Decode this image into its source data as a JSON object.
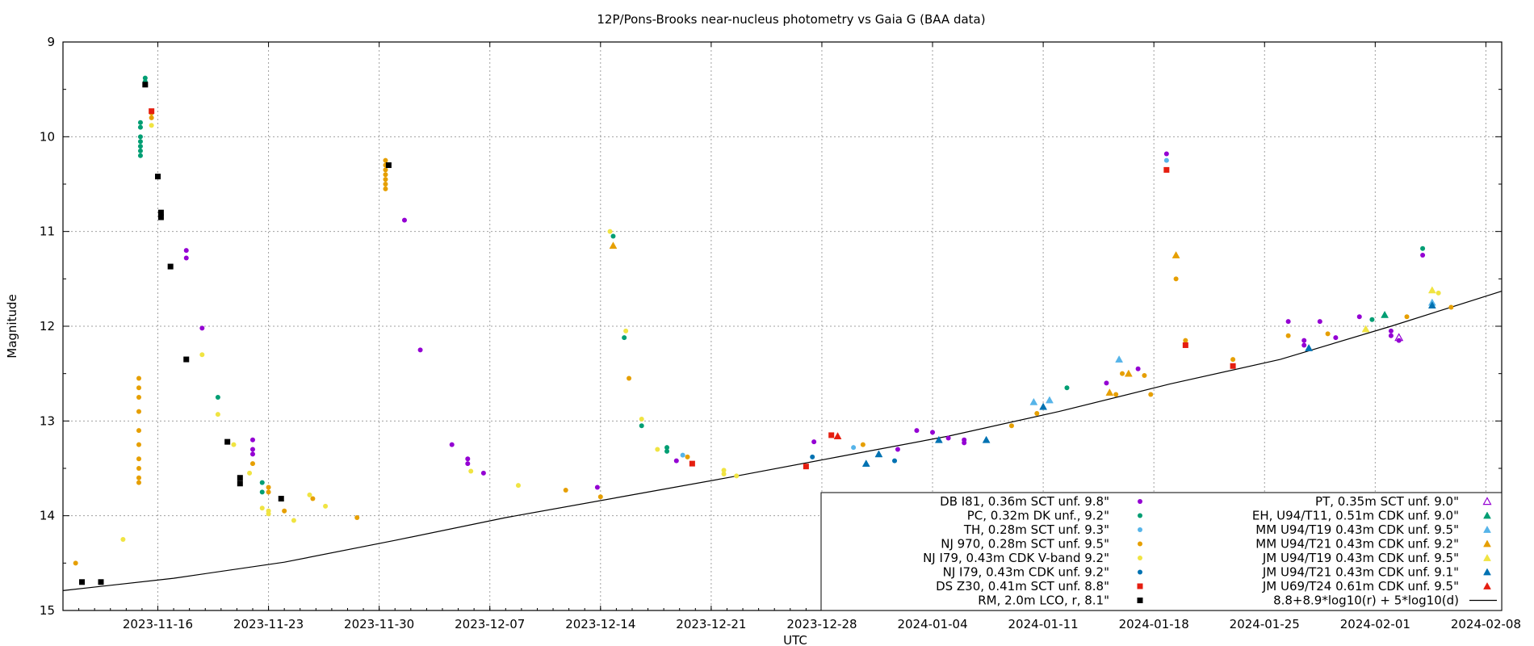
{
  "chart_data": {
    "type": "scatter",
    "title": "12P/Pons-Brooks near-nucleus photometry vs Gaia G (BAA data)",
    "xlabel": "UTC",
    "ylabel": "Magnitude",
    "xlim": [
      "2023-11-10",
      "2024-02-09"
    ],
    "ylim": [
      9,
      15
    ],
    "y_inverted": true,
    "grid": true,
    "legend_position": "bottom-right",
    "x_ticks": [
      "2023-11-16",
      "2023-11-23",
      "2023-11-30",
      "2023-12-07",
      "2023-12-14",
      "2023-12-21",
      "2023-12-28",
      "2024-01-04",
      "2024-01-11",
      "2024-01-18",
      "2024-01-25",
      "2024-02-01",
      "2024-02-08"
    ],
    "y_ticks": [
      9,
      10,
      11,
      12,
      13,
      14,
      15
    ],
    "series": [
      {
        "name": "DB I81, 0.36m SCT unf. 9.8\"",
        "marker": "dot",
        "color": "#9400d3",
        "points": [
          [
            "2023-11-17.8",
            11.2
          ],
          [
            "2023-11-17.8",
            11.28
          ],
          [
            "2023-11-18.8",
            12.02
          ],
          [
            "2023-11-22.0",
            13.2
          ],
          [
            "2023-11-22.0",
            13.3
          ],
          [
            "2023-11-22.0",
            13.35
          ],
          [
            "2023-12-01.6",
            10.88
          ],
          [
            "2023-12-02.6",
            12.25
          ],
          [
            "2023-12-04.6",
            13.25
          ],
          [
            "2023-12-05.6",
            13.4
          ],
          [
            "2023-12-05.6",
            13.45
          ],
          [
            "2023-12-06.6",
            13.55
          ],
          [
            "2023-12-13.8",
            13.7
          ],
          [
            "2023-12-18.8",
            13.42
          ],
          [
            "2023-12-27.5",
            13.22
          ],
          [
            "2024-01-01.8",
            13.3
          ],
          [
            "2024-01-03.0",
            13.1
          ],
          [
            "2024-01-04.0",
            13.12
          ],
          [
            "2024-01-05.0",
            13.18
          ],
          [
            "2024-01-06.0",
            13.2
          ],
          [
            "2024-01-06.0",
            13.23
          ],
          [
            "2024-01-15.0",
            12.6
          ],
          [
            "2024-01-17.0",
            12.45
          ],
          [
            "2024-01-18.8",
            10.18
          ],
          [
            "2024-01-26.5",
            11.95
          ],
          [
            "2024-01-27.5",
            12.15
          ],
          [
            "2024-01-27.5",
            12.2
          ],
          [
            "2024-01-28.5",
            11.95
          ],
          [
            "2024-01-29.5",
            12.12
          ],
          [
            "2024-01-31.0",
            11.9
          ],
          [
            "2024-02-02.0",
            12.05
          ],
          [
            "2024-02-02.0",
            12.1
          ],
          [
            "2024-02-02.5",
            12.15
          ],
          [
            "2024-02-04.0",
            11.25
          ]
        ]
      },
      {
        "name": "PC, 0.32m DK unf., 9.2\"",
        "marker": "dot",
        "color": "#009e73",
        "points": [
          [
            "2023-11-14.9",
            10.0
          ],
          [
            "2023-11-14.9",
            10.05
          ],
          [
            "2023-11-14.9",
            10.1
          ],
          [
            "2023-11-14.9",
            10.15
          ],
          [
            "2023-11-14.9",
            10.2
          ],
          [
            "2023-11-14.9",
            9.85
          ],
          [
            "2023-11-14.9",
            9.9
          ],
          [
            "2023-11-15.2",
            9.38
          ],
          [
            "2023-11-15.2",
            9.42
          ],
          [
            "2023-11-19.8",
            12.75
          ],
          [
            "2023-11-22.6",
            13.75
          ],
          [
            "2023-11-22.6",
            13.65
          ],
          [
            "2023-12-14.8",
            11.05
          ],
          [
            "2023-12-15.5",
            12.12
          ],
          [
            "2023-12-16.6",
            13.05
          ],
          [
            "2023-12-18.2",
            13.28
          ],
          [
            "2023-12-18.2",
            13.32
          ],
          [
            "2024-01-12.5",
            12.65
          ],
          [
            "2024-01-31.8",
            11.93
          ],
          [
            "2024-02-04.0",
            11.18
          ]
        ]
      },
      {
        "name": "TH, 0.28m SCT unf. 9.3\"",
        "marker": "dot",
        "color": "#56b4e9",
        "points": [
          [
            "2023-12-19.2",
            13.36
          ],
          [
            "2023-12-30.0",
            13.28
          ],
          [
            "2024-01-18.8",
            10.25
          ]
        ]
      },
      {
        "name": "NJ 970, 0.28m SCT unf. 9.5\"",
        "marker": "dot",
        "color": "#e69f00",
        "points": [
          [
            "2023-11-10.8",
            14.5
          ],
          [
            "2023-11-14.8",
            12.55
          ],
          [
            "2023-11-14.8",
            12.65
          ],
          [
            "2023-11-14.8",
            12.75
          ],
          [
            "2023-11-14.8",
            12.9
          ],
          [
            "2023-11-14.8",
            13.1
          ],
          [
            "2023-11-14.8",
            13.25
          ],
          [
            "2023-11-14.8",
            13.4
          ],
          [
            "2023-11-14.8",
            13.5
          ],
          [
            "2023-11-14.8",
            13.6
          ],
          [
            "2023-11-14.8",
            13.65
          ],
          [
            "2023-11-15.6",
            9.75
          ],
          [
            "2023-11-15.6",
            9.8
          ],
          [
            "2023-11-22.0",
            13.45
          ],
          [
            "2023-11-23.0",
            13.7
          ],
          [
            "2023-11-23.0",
            13.75
          ],
          [
            "2023-11-24.0",
            13.95
          ],
          [
            "2023-11-25.8",
            13.82
          ],
          [
            "2023-11-28.6",
            14.02
          ],
          [
            "2023-11-30.4",
            10.25
          ],
          [
            "2023-11-30.4",
            10.3
          ],
          [
            "2023-11-30.4",
            10.35
          ],
          [
            "2023-11-30.4",
            10.4
          ],
          [
            "2023-11-30.4",
            10.45
          ],
          [
            "2023-11-30.4",
            10.5
          ],
          [
            "2023-11-30.4",
            10.55
          ],
          [
            "2023-12-11.8",
            13.73
          ],
          [
            "2023-12-14.0",
            13.8
          ],
          [
            "2023-12-15.8",
            12.55
          ],
          [
            "2023-12-19.5",
            13.38
          ],
          [
            "2023-12-30.6",
            13.25
          ],
          [
            "2024-01-09.0",
            13.05
          ],
          [
            "2024-01-10.6",
            12.92
          ],
          [
            "2024-01-15.6",
            12.72
          ],
          [
            "2024-01-16.0",
            12.5
          ],
          [
            "2024-01-17.4",
            12.52
          ],
          [
            "2024-01-17.8",
            12.72
          ],
          [
            "2024-01-19.4",
            11.5
          ],
          [
            "2024-01-20.0",
            12.15
          ],
          [
            "2024-01-23.0",
            12.35
          ],
          [
            "2024-01-26.5",
            12.1
          ],
          [
            "2024-01-29.0",
            12.08
          ],
          [
            "2024-02-03.0",
            11.9
          ],
          [
            "2024-02-05.8",
            11.8
          ]
        ]
      },
      {
        "name": "NJ I79, 0.43m CDK V-band 9.2\"",
        "marker": "dot",
        "color": "#f0e442",
        "points": [
          [
            "2023-11-13.8",
            14.25
          ],
          [
            "2023-11-15.6",
            9.88
          ],
          [
            "2023-11-18.8",
            12.3
          ],
          [
            "2023-11-19.8",
            12.93
          ],
          [
            "2023-11-20.8",
            13.25
          ],
          [
            "2023-11-21.8",
            13.55
          ],
          [
            "2023-11-22.6",
            13.92
          ],
          [
            "2023-11-23.0",
            13.95
          ],
          [
            "2023-11-23.0",
            13.98
          ],
          [
            "2023-11-24.6",
            14.05
          ],
          [
            "2023-11-25.6",
            13.78
          ],
          [
            "2023-11-26.6",
            13.9
          ],
          [
            "2023-12-05.8",
            13.53
          ],
          [
            "2023-12-08.8",
            13.68
          ],
          [
            "2023-12-14.6",
            11.0
          ],
          [
            "2023-12-15.6",
            12.05
          ],
          [
            "2023-12-16.6",
            12.98
          ],
          [
            "2023-12-17.6",
            13.3
          ],
          [
            "2023-12-21.8",
            13.52
          ],
          [
            "2023-12-21.8",
            13.56
          ],
          [
            "2023-12-22.6",
            13.58
          ],
          [
            "2024-02-05.0",
            11.65
          ]
        ]
      },
      {
        "name": "NJ I79, 0.43m CDK unf. 9.2\"",
        "marker": "dot",
        "color": "#0072b2",
        "points": [
          [
            "2023-12-27.4",
            13.38
          ],
          [
            "2024-01-01.6",
            13.42
          ]
        ]
      },
      {
        "name": "DS Z30, 0.41m SCT unf. 8.8\"",
        "marker": "square",
        "color": "#e51e10",
        "points": [
          [
            "2023-11-15.6",
            9.73
          ],
          [
            "2023-12-19.8",
            13.45
          ],
          [
            "2023-12-27.0",
            13.48
          ],
          [
            "2023-12-28.6",
            13.15
          ],
          [
            "2024-01-18.8",
            10.35
          ],
          [
            "2024-01-20.0",
            12.2
          ],
          [
            "2024-01-23.0",
            12.42
          ]
        ]
      },
      {
        "name": "RM, 2.0m LCO, r, 8.1\"",
        "marker": "square",
        "color": "#000000",
        "points": [
          [
            "2023-11-11.2",
            14.7
          ],
          [
            "2023-11-12.4",
            14.7
          ],
          [
            "2023-11-15.2",
            9.45
          ],
          [
            "2023-11-16.0",
            10.42
          ],
          [
            "2023-11-16.2",
            10.8
          ],
          [
            "2023-11-16.2",
            10.85
          ],
          [
            "2023-11-16.8",
            11.37
          ],
          [
            "2023-11-17.8",
            12.35
          ],
          [
            "2023-11-20.4",
            13.22
          ],
          [
            "2023-11-21.2",
            13.6
          ],
          [
            "2023-11-21.2",
            13.66
          ],
          [
            "2023-11-23.8",
            13.82
          ],
          [
            "2023-11-30.6",
            10.3
          ]
        ]
      },
      {
        "name": "PT, 0.35m SCT unf. 9.0\"",
        "marker": "triangle-open",
        "color": "#9400d3",
        "points": [
          [
            "2024-02-02.5",
            12.12
          ]
        ]
      },
      {
        "name": "EH, U94/T11, 0.51m CDK unf. 9.0\"",
        "marker": "triangle",
        "color": "#009e73",
        "points": [
          [
            "2024-02-01.6",
            11.88
          ]
        ]
      },
      {
        "name": "MM U94/T19 0.43m CDK unf. 9.5\"",
        "marker": "triangle",
        "color": "#56b4e9",
        "points": [
          [
            "2024-01-10.4",
            12.8
          ],
          [
            "2024-01-11.4",
            12.78
          ],
          [
            "2024-01-15.8",
            12.35
          ],
          [
            "2024-02-04.6",
            11.75
          ]
        ]
      },
      {
        "name": "MM U94/T21 0.43m CDK unf. 9.2\"",
        "marker": "triangle",
        "color": "#e69f00",
        "points": [
          [
            "2023-12-14.8",
            11.15
          ],
          [
            "2024-01-15.2",
            12.7
          ],
          [
            "2024-01-16.4",
            12.5
          ],
          [
            "2024-01-19.4",
            11.25
          ]
        ]
      },
      {
        "name": "JM U94/T19 0.43m CDK unf. 9.5\"",
        "marker": "triangle",
        "color": "#f0e442",
        "points": [
          [
            "2024-02-04.6",
            11.62
          ],
          [
            "2024-01-31.4",
            12.03
          ]
        ]
      },
      {
        "name": "JM U94/T21 0.43m CDK unf. 9.1\"",
        "marker": "triangle",
        "color": "#0072b2",
        "points": [
          [
            "2023-12-30.8",
            13.45
          ],
          [
            "2023-12-31.6",
            13.35
          ],
          [
            "2024-01-04.4",
            13.2
          ],
          [
            "2024-01-07.4",
            13.2
          ],
          [
            "2024-01-11.0",
            12.85
          ],
          [
            "2024-01-27.8",
            12.23
          ],
          [
            "2024-02-04.6",
            11.78
          ]
        ]
      },
      {
        "name": "JM U69/T24 0.61m CDK unf. 9.5\"",
        "marker": "triangle",
        "color": "#e51e10",
        "points": [
          [
            "2023-12-29.0",
            13.16
          ]
        ]
      }
    ],
    "model_line": {
      "name": "8.8+8.9*log10(r) + 5*log10(d)",
      "color": "#000000",
      "points": [
        [
          "2023-11-10",
          14.79
        ],
        [
          "2023-11-17",
          14.66
        ],
        [
          "2023-11-24",
          14.49
        ],
        [
          "2023-12-01",
          14.26
        ],
        [
          "2023-12-08",
          14.02
        ],
        [
          "2023-12-15",
          13.81
        ],
        [
          "2023-12-22",
          13.6
        ],
        [
          "2023-12-29",
          13.38
        ],
        [
          "2024-01-05",
          13.16
        ],
        [
          "2024-01-12",
          12.9
        ],
        [
          "2024-01-19",
          12.61
        ],
        [
          "2024-01-26",
          12.35
        ],
        [
          "2024-02-02",
          12.0
        ],
        [
          "2024-02-09",
          11.63
        ]
      ]
    }
  }
}
